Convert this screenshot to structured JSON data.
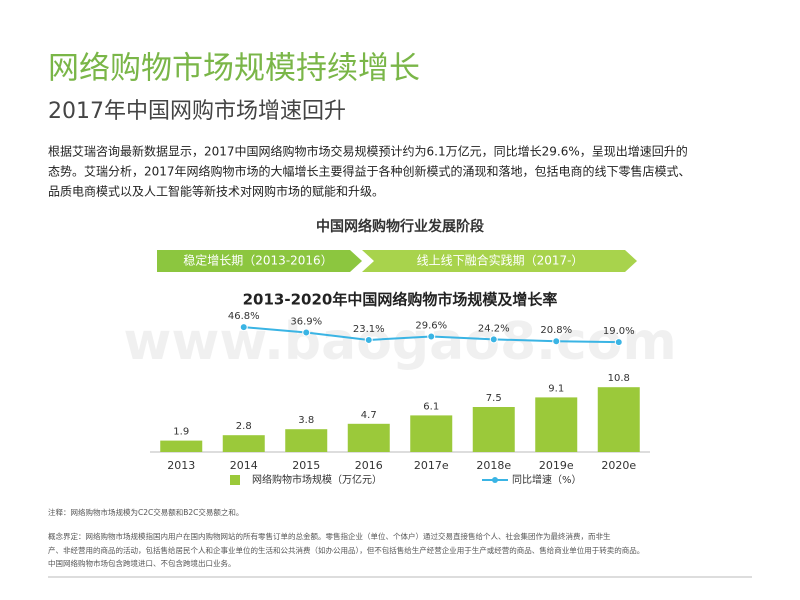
{
  "header": {
    "title": "网络购物市场规模持续增长",
    "subtitle": "2017年中国网购市场增速回升"
  },
  "intro": [
    "根据艾瑞咨询最新数据显示，2017中国网络购物市场交易规模预计约为6.1万亿元，同比增长29.6%，呈现出增速回升的",
    "态势。艾瑞分析，2017年网络购物市场的大幅增长主要得益于各种创新模式的涌现和落地，包括电商的线下零售店模式、",
    "品质电商模式以及人工智能等新技术对网购市场的赋能和升级。"
  ],
  "stages": {
    "title": "中国网络购物行业发展阶段",
    "items": [
      "稳定增长期（2013-2016）",
      "线上线下融合实践期（2017-）"
    ]
  },
  "watermark": "www.baogao8.com",
  "chart_data": {
    "type": "bar",
    "title": "2013-2020年中国网络购物市场规模及增长率",
    "categories": [
      "2013",
      "2014",
      "2015",
      "2016",
      "2017e",
      "2018e",
      "2019e",
      "2020e"
    ],
    "ylim": [
      0,
      22
    ],
    "y2lim": [
      -184,
      60
    ],
    "series": [
      {
        "name": "网络购物市场规模（万亿元）",
        "type": "bar",
        "color": "#9bc93a",
        "values": [
          1.9,
          2.8,
          3.8,
          4.7,
          6.1,
          7.5,
          9.1,
          10.8
        ]
      },
      {
        "name": "同比增速（%）",
        "type": "line",
        "axis": "y2",
        "color": "#3ab4e4",
        "values": [
          null,
          46.8,
          36.9,
          23.1,
          29.6,
          24.2,
          20.8,
          19.0
        ],
        "value_labels": [
          null,
          "46.8%",
          "36.9%",
          "23.1%",
          "29.6%",
          "24.2%",
          "20.8%",
          "19.0%"
        ]
      }
    ]
  },
  "notes": [
    "注释：网络购物市场规模为C2C交易额和B2C交易额之和。",
    "概念界定：网络购物市场规模指国内用户在国内购物网站的所有零售订单的总金额。零售指企业（单位、个体户）通过交易直接售给个人、社会集团作为最终消费，而非生",
    "产、非经营用的商品的活动，包括售给居民个人和企事业单位的生活和公共消费（如办公用品），但不包括售给生产经营企业用于生产或经营的商品、售给商业单位用于转卖的商品。",
    "中国网络购物市场包含跨境进口、不包含跨境出口业务。"
  ]
}
